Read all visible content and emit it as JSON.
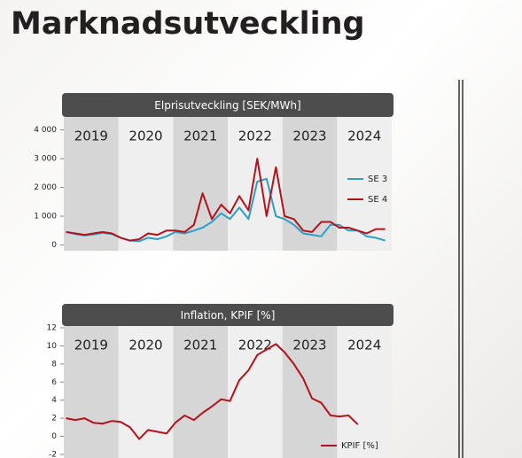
{
  "title": "Marknadsutveckling",
  "chart_data": [
    {
      "type": "line",
      "title": "Elprisutveckling [SEK/MWh]",
      "categories": [
        "2019",
        "2020",
        "2021",
        "2022",
        "2023",
        "2024"
      ],
      "band_colors": [
        "#d6d6d6",
        "#efefef"
      ],
      "x": [
        2019.04,
        2019.21,
        2019.38,
        2019.54,
        2019.71,
        2019.88,
        2020.04,
        2020.21,
        2020.38,
        2020.54,
        2020.71,
        2020.88,
        2021.04,
        2021.21,
        2021.38,
        2021.54,
        2021.71,
        2021.88,
        2022.04,
        2022.21,
        2022.38,
        2022.54,
        2022.71,
        2022.88,
        2023.04,
        2023.21,
        2023.38,
        2023.54,
        2023.71,
        2023.88,
        2024.04,
        2024.21,
        2024.38,
        2024.54,
        2024.71,
        2024.88
      ],
      "xlim": [
        2019,
        2025
      ],
      "ylim": [
        -200,
        4450
      ],
      "yticks": [
        0,
        {
          "value": 1000,
          "label": "1 000"
        },
        {
          "value": 2000,
          "label": "2 000"
        },
        {
          "value": 3000,
          "label": "3 000"
        },
        {
          "value": 4000,
          "label": "4 000"
        }
      ],
      "legend": "right",
      "series": [
        {
          "name": "SE 3",
          "color": "#2b9fc4",
          "values": [
            450,
            380,
            330,
            360,
            420,
            380,
            250,
            150,
            130,
            250,
            200,
            300,
            450,
            400,
            500,
            600,
            800,
            1100,
            900,
            1300,
            900,
            2200,
            2300,
            1000,
            900,
            700,
            400,
            350,
            300,
            700,
            700,
            500,
            500,
            300,
            250,
            150
          ]
        },
        {
          "name": "SE 4",
          "color": "#b3121c",
          "values": [
            450,
            400,
            350,
            400,
            450,
            400,
            250,
            150,
            200,
            400,
            350,
            500,
            500,
            450,
            700,
            1800,
            900,
            1400,
            1100,
            1700,
            1200,
            3000,
            1000,
            2700,
            1000,
            900,
            500,
            450,
            800,
            800,
            600,
            600,
            500,
            400,
            550,
            550
          ]
        }
      ]
    },
    {
      "type": "line",
      "title": "Inflation, KPIF [%]",
      "categories": [
        "2019",
        "2020",
        "2021",
        "2022",
        "2023",
        "2024"
      ],
      "band_colors": [
        "#d6d6d6",
        "#efefef"
      ],
      "x": [
        2019.04,
        2019.21,
        2019.38,
        2019.54,
        2019.71,
        2019.88,
        2020.04,
        2020.21,
        2020.38,
        2020.54,
        2020.71,
        2020.88,
        2021.04,
        2021.21,
        2021.38,
        2021.54,
        2021.71,
        2021.88,
        2022.04,
        2022.21,
        2022.38,
        2022.54,
        2022.71,
        2022.88,
        2023.04,
        2023.21,
        2023.38,
        2023.54,
        2023.71,
        2023.88,
        2024.04,
        2024.21,
        2024.38,
        2024.54,
        2024.71,
        2024.88
      ],
      "xlim": [
        2019,
        2025
      ],
      "ylim": [
        -2.4,
        12.2
      ],
      "yticks": [
        -2,
        0,
        2,
        4,
        6,
        8,
        10,
        12
      ],
      "legend": "bottom-right",
      "series": [
        {
          "name": "KPIF [%]",
          "color": "#b3121c",
          "values": [
            2.0,
            1.8,
            2.0,
            1.5,
            1.4,
            1.7,
            1.6,
            1.0,
            -0.3,
            0.7,
            0.5,
            0.3,
            1.5,
            2.3,
            1.8,
            2.6,
            3.3,
            4.1,
            3.9,
            6.2,
            7.3,
            9.0,
            9.6,
            10.2,
            9.3,
            8.0,
            6.4,
            4.2,
            3.7,
            2.3,
            2.2,
            2.3,
            1.3,
            null,
            null,
            null
          ]
        }
      ]
    }
  ]
}
